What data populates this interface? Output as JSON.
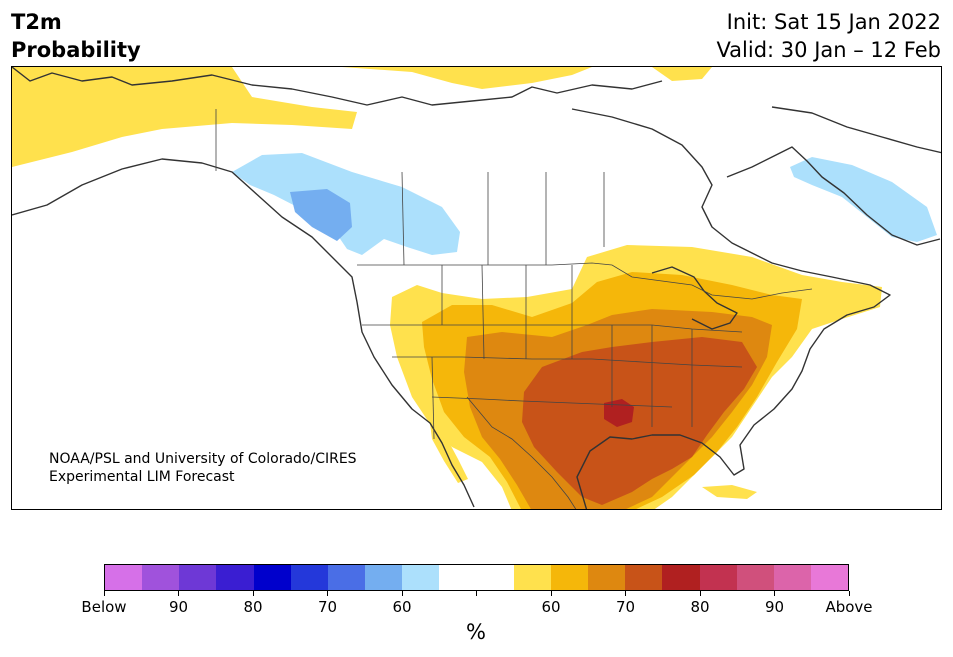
{
  "header": {
    "variable": "T2m",
    "quantity": "Probability",
    "init": "Init: Sat 15 Jan 2022",
    "valid": "Valid: 30 Jan – 12 Feb"
  },
  "credit": {
    "line1": "NOAA/PSL and University of Colorado/CIRES",
    "line2": "Experimental LIM Forecast"
  },
  "colorbar": {
    "unit": "%",
    "colors": [
      "#d670e8",
      "#a052dc",
      "#6e38d6",
      "#3a1ed2",
      "#0000cc",
      "#2438da",
      "#4a6ee6",
      "#74aef0",
      "#ace0fc",
      "#ffffff",
      "#ffffff",
      "#ffe14d",
      "#f5b70a",
      "#de8810",
      "#c85318",
      "#b02020",
      "#c23250",
      "#d0507c",
      "#dc64aa",
      "#e878d8"
    ],
    "labels": [
      "Below",
      "90",
      "80",
      "70",
      "60",
      "",
      "60",
      "70",
      "80",
      "90",
      "Above"
    ]
  },
  "map": {
    "anomaly_colors": {
      "below_60": "#ace0fc",
      "below_70": "#74aef0",
      "above_55": "#ffe14d",
      "above_60": "#f5b70a",
      "above_65": "#de8810",
      "above_70": "#c85318",
      "above_75": "#b02020"
    }
  }
}
